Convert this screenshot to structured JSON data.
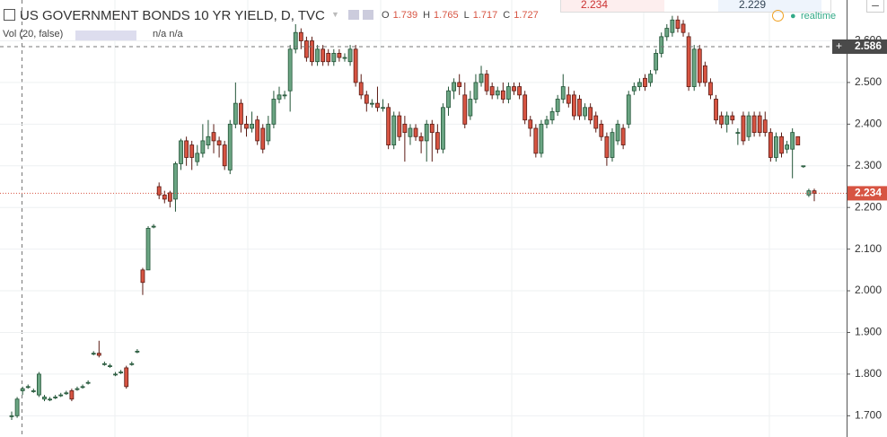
{
  "header": {
    "title": "US GOVERNMENT BONDS 10 YR YIELD, D, TVC",
    "ohlc": [
      {
        "key": "O",
        "value": 1.739
      },
      {
        "key": "H",
        "value": 1.765
      },
      {
        "key": "L",
        "value": 1.717
      },
      {
        "key": "C",
        "value": 1.727
      }
    ],
    "volume": "Vol (20, false)",
    "volume_values": "n/a n/a",
    "quotes": [
      2.234,
      2.229
    ],
    "status": "realtime"
  },
  "chart_data": {
    "type": "candlestick",
    "open": [
      1.7,
      1.7,
      1.76,
      1.77,
      1.76,
      1.75,
      1.74,
      1.74,
      1.745,
      1.75,
      1.755,
      1.76,
      1.765,
      1.77,
      1.78,
      1.85,
      1.85,
      1.825,
      1.82,
      1.8,
      1.805,
      1.815,
      1.825,
      1.855,
      2.05,
      2.05,
      2.155,
      2.25,
      2.23,
      2.235,
      2.22,
      2.305,
      2.36,
      2.35,
      2.31,
      2.33,
      2.35,
      2.38,
      2.36,
      2.35,
      2.29,
      2.4,
      2.45,
      2.4,
      2.39,
      2.41,
      2.39,
      2.36,
      2.4,
      2.46,
      2.47,
      2.48,
      2.58,
      2.62,
      2.6,
      2.6,
      2.55,
      2.58,
      2.57,
      2.55,
      2.57,
      2.56,
      2.55,
      2.58,
      2.5,
      2.47,
      2.45,
      2.45,
      2.44,
      2.44,
      2.35,
      2.42,
      2.4,
      2.37,
      2.39,
      2.37,
      2.36,
      2.4,
      2.38,
      2.34,
      2.44,
      2.48,
      2.5,
      2.47,
      2.42,
      2.46,
      2.5,
      2.52,
      2.49,
      2.47,
      2.48,
      2.46,
      2.49,
      2.49,
      2.47,
      2.41,
      2.39,
      2.33,
      2.4,
      2.41,
      2.43,
      2.46,
      2.47,
      2.47,
      2.46,
      2.42,
      2.44,
      2.42,
      2.4,
      2.37,
      2.32,
      2.36,
      2.39,
      2.4,
      2.48,
      2.49,
      2.51,
      2.5,
      2.53,
      2.57,
      2.61,
      2.62,
      2.65,
      2.64,
      2.61,
      2.49,
      2.58,
      2.54,
      2.5,
      2.46,
      2.42,
      2.4,
      2.42,
      2.38,
      2.42,
      2.37,
      2.42,
      2.42,
      2.41,
      2.38,
      2.32,
      2.37,
      2.34,
      2.34,
      2.37,
      2.3,
      2.23,
      2.24
    ],
    "high": [
      1.71,
      1.745,
      1.77,
      1.775,
      1.765,
      1.805,
      1.75,
      1.745,
      1.75,
      1.755,
      1.76,
      1.765,
      1.77,
      1.775,
      1.785,
      1.855,
      1.88,
      1.83,
      1.825,
      1.805,
      1.81,
      1.82,
      1.83,
      1.86,
      2.055,
      2.155,
      2.16,
      2.26,
      2.24,
      2.24,
      2.31,
      2.365,
      2.37,
      2.36,
      2.35,
      2.4,
      2.41,
      2.4,
      2.37,
      2.36,
      2.41,
      2.5,
      2.46,
      2.42,
      2.43,
      2.42,
      2.4,
      2.42,
      2.48,
      2.49,
      2.48,
      2.59,
      2.64,
      2.63,
      2.61,
      2.61,
      2.59,
      2.59,
      2.58,
      2.58,
      2.58,
      2.57,
      2.59,
      2.59,
      2.52,
      2.48,
      2.46,
      2.49,
      2.46,
      2.45,
      2.43,
      2.43,
      2.42,
      2.4,
      2.4,
      2.38,
      2.41,
      2.41,
      2.4,
      2.45,
      2.49,
      2.51,
      2.52,
      2.5,
      2.48,
      2.52,
      2.54,
      2.53,
      2.5,
      2.49,
      2.5,
      2.5,
      2.5,
      2.5,
      2.48,
      2.42,
      2.4,
      2.41,
      2.42,
      2.44,
      2.47,
      2.52,
      2.49,
      2.48,
      2.47,
      2.45,
      2.45,
      2.43,
      2.41,
      2.38,
      2.39,
      2.41,
      2.4,
      2.48,
      2.5,
      2.51,
      2.52,
      2.53,
      2.58,
      2.62,
      2.64,
      2.66,
      2.66,
      2.65,
      2.62,
      2.59,
      2.59,
      2.55,
      2.51,
      2.47,
      2.43,
      2.43,
      2.43,
      2.39,
      2.43,
      2.43,
      2.43,
      2.43,
      2.43,
      2.39,
      2.38,
      2.38,
      2.36,
      2.39,
      2.37,
      2.3,
      2.245,
      2.245
    ],
    "low": [
      1.69,
      1.695,
      1.75,
      1.765,
      1.755,
      1.745,
      1.735,
      1.735,
      1.74,
      1.745,
      1.75,
      1.735,
      1.76,
      1.765,
      1.775,
      1.845,
      1.84,
      1.82,
      1.815,
      1.795,
      1.8,
      1.765,
      1.82,
      1.85,
      1.99,
      2.05,
      2.15,
      2.22,
      2.21,
      2.2,
      2.19,
      2.29,
      2.3,
      2.29,
      2.3,
      2.32,
      2.34,
      2.33,
      2.32,
      2.29,
      2.28,
      2.39,
      2.38,
      2.37,
      2.38,
      2.35,
      2.33,
      2.35,
      2.39,
      2.45,
      2.46,
      2.43,
      2.57,
      2.58,
      2.55,
      2.54,
      2.54,
      2.54,
      2.54,
      2.54,
      2.55,
      2.55,
      2.54,
      2.49,
      2.46,
      2.43,
      2.44,
      2.43,
      2.43,
      2.34,
      2.34,
      2.36,
      2.31,
      2.35,
      2.36,
      2.33,
      2.31,
      2.31,
      2.33,
      2.33,
      2.42,
      2.46,
      2.47,
      2.39,
      2.41,
      2.45,
      2.49,
      2.47,
      2.46,
      2.46,
      2.45,
      2.45,
      2.47,
      2.46,
      2.4,
      2.37,
      2.32,
      2.32,
      2.39,
      2.4,
      2.42,
      2.45,
      2.44,
      2.41,
      2.41,
      2.41,
      2.4,
      2.38,
      2.36,
      2.3,
      2.31,
      2.35,
      2.34,
      2.39,
      2.47,
      2.48,
      2.48,
      2.49,
      2.52,
      2.56,
      2.6,
      2.61,
      2.62,
      2.61,
      2.48,
      2.48,
      2.49,
      2.49,
      2.46,
      2.4,
      2.39,
      2.38,
      2.4,
      2.35,
      2.35,
      2.36,
      2.37,
      2.37,
      2.37,
      2.31,
      2.31,
      2.32,
      2.33,
      2.27,
      2.35,
      2.295,
      2.225,
      2.215
    ],
    "close": [
      1.7,
      1.74,
      1.765,
      1.77,
      1.76,
      1.8,
      1.745,
      1.74,
      1.745,
      1.75,
      1.755,
      1.74,
      1.765,
      1.77,
      1.78,
      1.85,
      1.845,
      1.825,
      1.82,
      1.8,
      1.805,
      1.77,
      1.825,
      1.855,
      2.02,
      2.15,
      2.155,
      2.23,
      2.22,
      2.215,
      2.305,
      2.36,
      2.32,
      2.32,
      2.33,
      2.36,
      2.37,
      2.36,
      2.35,
      2.3,
      2.4,
      2.45,
      2.4,
      2.39,
      2.4,
      2.36,
      2.34,
      2.4,
      2.46,
      2.47,
      2.47,
      2.58,
      2.62,
      2.6,
      2.56,
      2.55,
      2.58,
      2.55,
      2.55,
      2.57,
      2.56,
      2.56,
      2.58,
      2.5,
      2.47,
      2.45,
      2.45,
      2.44,
      2.44,
      2.35,
      2.42,
      2.37,
      2.38,
      2.39,
      2.37,
      2.36,
      2.4,
      2.38,
      2.34,
      2.44,
      2.48,
      2.5,
      2.49,
      2.4,
      2.46,
      2.5,
      2.52,
      2.48,
      2.47,
      2.48,
      2.46,
      2.49,
      2.48,
      2.47,
      2.41,
      2.39,
      2.33,
      2.4,
      2.41,
      2.43,
      2.46,
      2.49,
      2.45,
      2.42,
      2.42,
      2.44,
      2.41,
      2.39,
      2.37,
      2.32,
      2.38,
      2.4,
      2.35,
      2.47,
      2.49,
      2.5,
      2.49,
      2.52,
      2.57,
      2.61,
      2.63,
      2.65,
      2.63,
      2.62,
      2.49,
      2.58,
      2.5,
      2.5,
      2.47,
      2.41,
      2.4,
      2.42,
      2.41,
      2.38,
      2.36,
      2.42,
      2.38,
      2.38,
      2.38,
      2.32,
      2.37,
      2.33,
      2.35,
      2.38,
      2.35,
      2.3,
      2.24,
      2.234
    ],
    "colors": {
      "up": "#6ba583",
      "up_border": "#225437",
      "down": "#d75442",
      "down_border": "#5b1a13"
    },
    "ylim": [
      1.649,
      2.698
    ],
    "yticks": [
      {
        "value": 1.7,
        "label": "1.700"
      },
      {
        "value": 1.8,
        "label": "1.800"
      },
      {
        "value": 1.9,
        "label": "1.900"
      },
      {
        "value": 2.0,
        "label": "2.000"
      },
      {
        "value": 2.1,
        "label": "2.100"
      },
      {
        "value": 2.2,
        "label": "2.200"
      },
      {
        "value": 2.3,
        "label": "2.300"
      },
      {
        "value": 2.4,
        "label": "2.400"
      },
      {
        "value": 2.5,
        "label": "2.500"
      },
      {
        "value": 2.6,
        "label": "2.600"
      }
    ],
    "grid": true,
    "last_price": 2.234,
    "crosshair_price": 2.586
  }
}
